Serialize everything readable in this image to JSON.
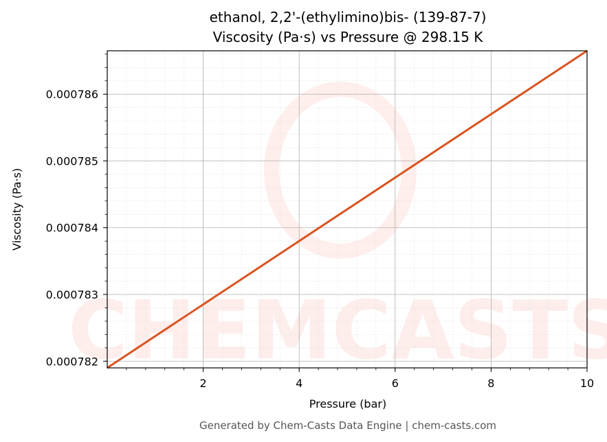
{
  "chart_data": {
    "type": "line",
    "title_line1": "ethanol, 2,2'-(ethylimino)bis- (139-87-7)",
    "title_line2": "Viscosity (Pa·s) vs Pressure @ 298.15 K",
    "xlabel": "Pressure (bar)",
    "ylabel": "Viscosity (Pa·s)",
    "xlim": [
      0.0,
      10.0
    ],
    "ylim": [
      0.0007819,
      0.00078665
    ],
    "xticks": [
      2,
      4,
      6,
      8,
      10
    ],
    "xtick_labels": [
      "2",
      "4",
      "6",
      "8",
      "10"
    ],
    "yticks": [
      0.000782,
      0.000783,
      0.000784,
      0.000785,
      0.000786
    ],
    "ytick_labels": [
      "0.000782",
      "0.000783",
      "0.000784",
      "0.000785",
      "0.000786"
    ],
    "grid": true,
    "series": [
      {
        "color": "#d9531e",
        "x": [
          0.0,
          10.0
        ],
        "y": [
          0.0007819,
          0.00078665
        ]
      }
    ]
  },
  "watermark": "CHEMCASTS",
  "footer": "Generated by Chem-Casts Data Engine | chem-casts.com",
  "colors": {
    "line": "#d9531e",
    "watermark": "#fde0dc"
  }
}
